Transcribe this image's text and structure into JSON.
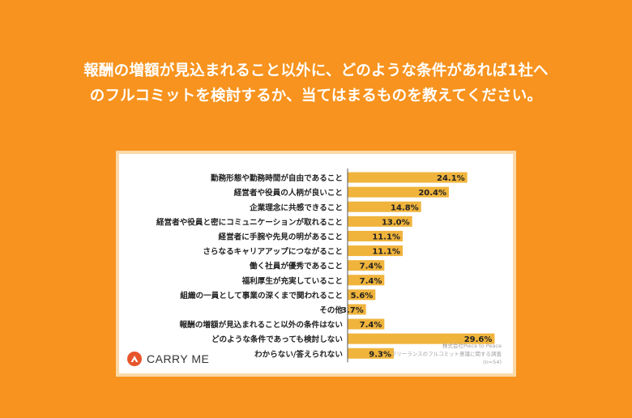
{
  "question": {
    "line1": "報酬の増額が見込まれること以外に、どのような条件があれば1社へ",
    "line2": "のフルコミットを検討するか、当てはまるものを教えてください。"
  },
  "logo": {
    "text": "CARRY ME",
    "icon": "carryme-logo-icon"
  },
  "source": {
    "company": "株式会社Piece to Peace",
    "survey": "フリーランスのフルコミット意識に関する調査",
    "n": "(n=54)"
  },
  "colors": {
    "background": "#F7931E",
    "bar": "#F0B43C",
    "axis": "#555555"
  },
  "chart_data": {
    "type": "bar",
    "orientation": "horizontal",
    "categories": [
      "勤務形態や勤務時間が自由であること",
      "経営者や役員の人柄が良いこと",
      "企業理念に共感できること",
      "経営者や役員と密にコミュニケーションが取れること",
      "経営者に手腕や先見の明があること",
      "さらなるキャリアアップにつながること",
      "働く社員が優秀であること",
      "福利厚生が充実していること",
      "組織の一員として事業の深くまで関われること",
      "その他",
      "報酬の増額が見込まれること以外の条件はない",
      "どのような条件であっても検討しない",
      "わからない/答えられない"
    ],
    "values": [
      24.1,
      20.4,
      14.8,
      13.0,
      11.1,
      11.1,
      7.4,
      7.4,
      5.6,
      3.7,
      7.4,
      29.6,
      9.3
    ],
    "labels": [
      "24.1%",
      "20.4%",
      "14.8%",
      "13.0%",
      "11.1%",
      "11.1%",
      "7.4%",
      "7.4%",
      "5.6%",
      "3.7%",
      "7.4%",
      "29.6%",
      "9.3%"
    ],
    "xlim": [
      0,
      31
    ],
    "grid": false,
    "legend": "none"
  }
}
